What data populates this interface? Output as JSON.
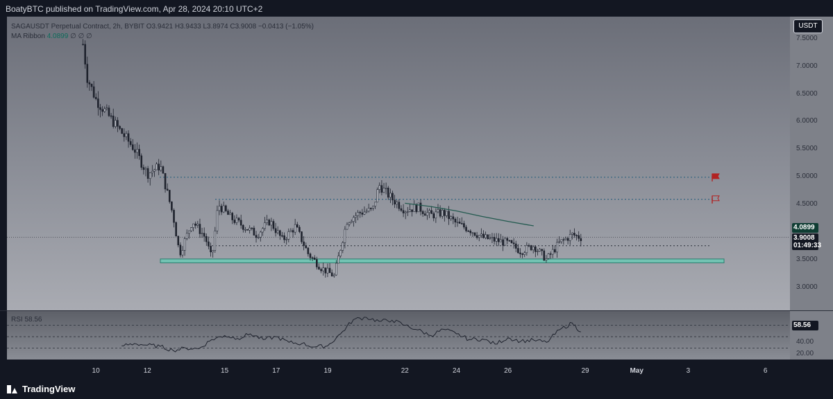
{
  "header": {
    "publisher": "BoatyBTC published on TradingView.com, Apr 28, 2024 20:10 UTC+2"
  },
  "legend": {
    "symbol_line": "SAGAUSDT Perpetual Contract, 2h, BYBIT  O3.9421  H3.9433  L3.8974  C3.9008  −0.0413 (−1.05%)",
    "ma_label": "MA Ribbon",
    "ma_value": "4.0899",
    "ma_extras": "∅  ∅  ∅"
  },
  "currency": "USDT",
  "price_axis": {
    "ticks": [
      "7.5000",
      "7.0000",
      "6.5000",
      "6.0000",
      "5.5000",
      "5.0000",
      "4.5000",
      "3.5000",
      "3.0000"
    ],
    "ma_label": "4.0899",
    "last_price": "3.9008",
    "countdown": "01:49:33"
  },
  "rsi": {
    "label": "RSI",
    "value": "58.56",
    "axis_value": "58.56",
    "ticks": [
      "40.00",
      "20.00"
    ]
  },
  "time_axis": {
    "ticks": [
      "10",
      "12",
      "15",
      "17",
      "19",
      "22",
      "24",
      "26",
      "29",
      "May",
      "3",
      "6"
    ],
    "bold": [
      false,
      false,
      false,
      false,
      false,
      false,
      false,
      false,
      false,
      true,
      false,
      false
    ]
  },
  "footer": {
    "brand": "TradingView"
  },
  "colors": {
    "candle": "#1e222d",
    "level_line": "#1f5a7a",
    "support_zone_fill": "#6fc7b5",
    "support_zone_border": "#1e7a68",
    "ma_line": "#235a4f",
    "flag": "#b22222",
    "rsi_line": "#1e222d"
  },
  "chart_data": {
    "type": "candlestick",
    "symbol": "SAGAUSDT",
    "interval": "2h",
    "exchange": "BYBIT",
    "ohlc_last": {
      "open": 3.9421,
      "high": 3.9433,
      "low": 3.8974,
      "close": 3.9008,
      "change": -0.0413,
      "change_pct": -1.05
    },
    "y_range": [
      2.9,
      7.7
    ],
    "close_path": [
      [
        "2024-04-09T12:00",
        7.4
      ],
      [
        "2024-04-09T16:00",
        6.8
      ],
      [
        "2024-04-10T00:00",
        6.4
      ],
      [
        "2024-04-10T12:00",
        6.1
      ],
      [
        "2024-04-11T00:00",
        5.8
      ],
      [
        "2024-04-11T12:00",
        5.5
      ],
      [
        "2024-04-12T00:00",
        5.05
      ],
      [
        "2024-04-12T12:00",
        5.2
      ],
      [
        "2024-04-13T00:00",
        4.3
      ],
      [
        "2024-04-13T06:00",
        3.6
      ],
      [
        "2024-04-13T18:00",
        4.2
      ],
      [
        "2024-04-14T06:00",
        3.9
      ],
      [
        "2024-04-14T12:00",
        3.5
      ],
      [
        "2024-04-14T18:00",
        4.5
      ],
      [
        "2024-04-15T06:00",
        4.25
      ],
      [
        "2024-04-15T18:00",
        4.1
      ],
      [
        "2024-04-16T06:00",
        3.95
      ],
      [
        "2024-04-16T18:00",
        4.2
      ],
      [
        "2024-04-17T06:00",
        3.85
      ],
      [
        "2024-04-17T18:00",
        4.1
      ],
      [
        "2024-04-18T06:00",
        3.6
      ],
      [
        "2024-04-18T18:00",
        3.35
      ],
      [
        "2024-04-19T06:00",
        3.2
      ],
      [
        "2024-04-19T12:00",
        3.7
      ],
      [
        "2024-04-19T18:00",
        4.2
      ],
      [
        "2024-04-20T06:00",
        4.35
      ],
      [
        "2024-04-20T18:00",
        4.4
      ],
      [
        "2024-04-21T00:00",
        4.85
      ],
      [
        "2024-04-21T12:00",
        4.6
      ],
      [
        "2024-04-22T00:00",
        4.4
      ],
      [
        "2024-04-22T12:00",
        4.45
      ],
      [
        "2024-04-23T00:00",
        4.3
      ],
      [
        "2024-04-23T12:00",
        4.35
      ],
      [
        "2024-04-24T00:00",
        4.15
      ],
      [
        "2024-04-24T12:00",
        4.05
      ],
      [
        "2024-04-25T00:00",
        3.9
      ],
      [
        "2024-04-25T12:00",
        3.85
      ],
      [
        "2024-04-26T00:00",
        3.8
      ],
      [
        "2024-04-26T12:00",
        3.65
      ],
      [
        "2024-04-27T00:00",
        3.75
      ],
      [
        "2024-04-27T12:00",
        3.5
      ],
      [
        "2024-04-28T00:00",
        3.8
      ],
      [
        "2024-04-28T12:00",
        3.95
      ],
      [
        "2024-04-28T20:00",
        3.9
      ]
    ],
    "horizontal_levels": [
      4.99,
      4.59,
      3.75
    ],
    "current_price_line": 3.9008,
    "support_zone": [
      3.44,
      3.51
    ],
    "ma_line": [
      [
        "2024-04-22T00:00",
        4.52
      ],
      [
        "2024-04-23T00:00",
        4.46
      ],
      [
        "2024-04-24T00:00",
        4.38
      ],
      [
        "2024-04-25T00:00",
        4.28
      ],
      [
        "2024-04-26T00:00",
        4.19
      ],
      [
        "2024-04-27T00:00",
        4.11
      ]
    ],
    "flags": [
      {
        "price": 4.99,
        "filled": true
      },
      {
        "price": 4.59,
        "filled": false
      }
    ],
    "rsi": {
      "range": [
        10,
        95
      ],
      "bands": [
        70,
        50,
        30
      ],
      "path": [
        [
          "2024-04-11T00:00",
          34
        ],
        [
          "2024-04-11T12:00",
          38
        ],
        [
          "2024-04-12T00:00",
          35
        ],
        [
          "2024-04-12T12:00",
          33
        ],
        [
          "2024-04-13T00:00",
          26
        ],
        [
          "2024-04-13T12:00",
          30
        ],
        [
          "2024-04-14T00:00",
          29
        ],
        [
          "2024-04-14T12:00",
          45
        ],
        [
          "2024-04-15T00:00",
          52
        ],
        [
          "2024-04-15T12:00",
          47
        ],
        [
          "2024-04-16T00:00",
          55
        ],
        [
          "2024-04-16T12:00",
          45
        ],
        [
          "2024-04-17T00:00",
          50
        ],
        [
          "2024-04-17T12:00",
          40
        ],
        [
          "2024-04-18T00:00",
          38
        ],
        [
          "2024-04-18T12:00",
          32
        ],
        [
          "2024-04-19T00:00",
          34
        ],
        [
          "2024-04-19T12:00",
          55
        ],
        [
          "2024-04-20T00:00",
          80
        ],
        [
          "2024-04-20T12:00",
          84
        ],
        [
          "2024-04-21T00:00",
          77
        ],
        [
          "2024-04-21T12:00",
          79
        ],
        [
          "2024-04-22T00:00",
          70
        ],
        [
          "2024-04-22T12:00",
          62
        ],
        [
          "2024-04-23T00:00",
          52
        ],
        [
          "2024-04-23T12:00",
          63
        ],
        [
          "2024-04-24T00:00",
          55
        ],
        [
          "2024-04-24T12:00",
          45
        ],
        [
          "2024-04-25T00:00",
          46
        ],
        [
          "2024-04-25T12:00",
          37
        ],
        [
          "2024-04-26T00:00",
          48
        ],
        [
          "2024-04-26T12:00",
          42
        ],
        [
          "2024-04-27T00:00",
          44
        ],
        [
          "2024-04-27T12:00",
          40
        ],
        [
          "2024-04-28T00:00",
          62
        ],
        [
          "2024-04-28T12:00",
          74
        ],
        [
          "2024-04-28T20:00",
          58.56
        ]
      ]
    }
  }
}
